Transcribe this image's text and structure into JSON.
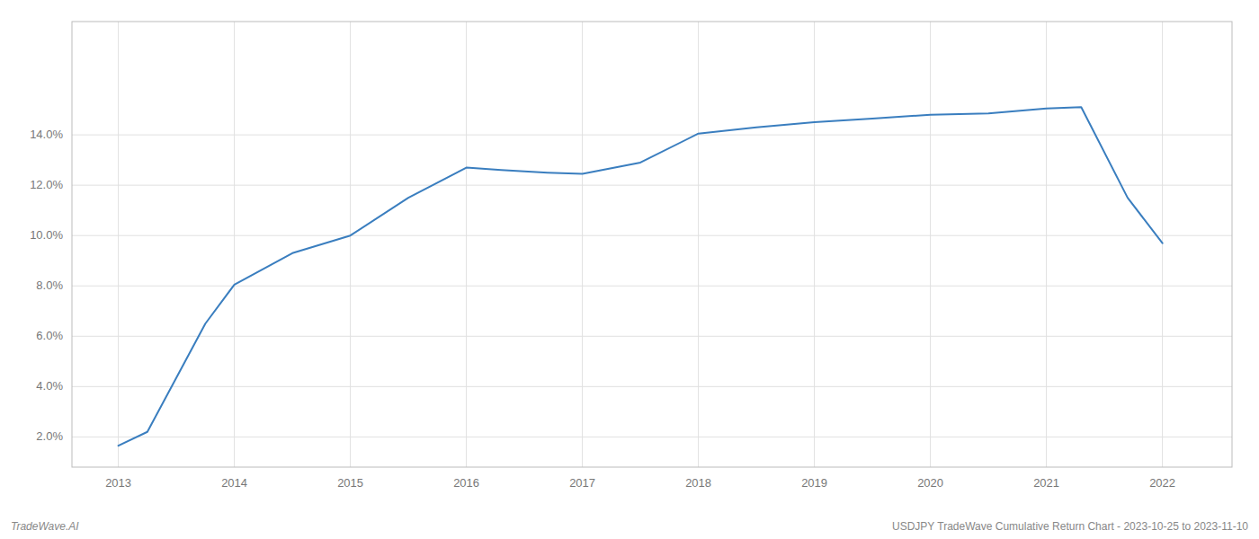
{
  "chart_data": {
    "type": "line",
    "x": [
      2013,
      2013.25,
      2013.75,
      2014,
      2014.5,
      2015,
      2015.5,
      2016,
      2016.3,
      2016.7,
      2017,
      2017.5,
      2018,
      2018.5,
      2019,
      2019.5,
      2020,
      2020.5,
      2021,
      2021.3,
      2021.7,
      2022
    ],
    "values": [
      1.65,
      2.2,
      6.5,
      8.05,
      9.3,
      10.0,
      11.5,
      12.7,
      12.6,
      12.5,
      12.45,
      12.9,
      14.05,
      14.3,
      14.5,
      14.65,
      14.8,
      14.85,
      15.05,
      15.1,
      11.5,
      9.7
    ],
    "color": "#3a7ebf",
    "xlim": [
      2012.6,
      2022.6
    ],
    "ylim": [
      0.8,
      18.5
    ],
    "xticks": [
      2013,
      2014,
      2015,
      2016,
      2017,
      2018,
      2019,
      2020,
      2021,
      2022
    ],
    "yticks": [
      {
        "value": 2.0,
        "label": "2.0%"
      },
      {
        "value": 4.0,
        "label": "4.0%"
      },
      {
        "value": 6.0,
        "label": "6.0%"
      },
      {
        "value": 8.0,
        "label": "8.0%"
      },
      {
        "value": 10.0,
        "label": "10.0%"
      },
      {
        "value": 12.0,
        "label": "12.0%"
      },
      {
        "value": 14.0,
        "label": "14.0%"
      }
    ],
    "grid": true,
    "annotations": [
      "TradeWave.AI",
      "USDJPY TradeWave Cumulative Return Chart - 2023-10-25 to 2023-11-10"
    ]
  }
}
